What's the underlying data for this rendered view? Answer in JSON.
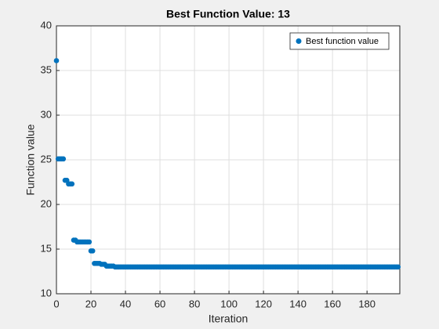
{
  "chart_data": {
    "type": "scatter",
    "title": "Best Function Value: 13",
    "xlabel": "Iteration",
    "ylabel": "Function value",
    "xlim": [
      0,
      199
    ],
    "ylim": [
      10,
      40
    ],
    "xticks": [
      0,
      20,
      40,
      60,
      80,
      100,
      120,
      140,
      160,
      180
    ],
    "yticks": [
      10,
      15,
      20,
      25,
      30,
      35,
      40
    ],
    "grid": true,
    "legend_position": "northeast",
    "series": [
      {
        "name": "Best function value",
        "color": "#0072bd",
        "x": [
          0,
          1,
          2,
          3,
          4,
          5,
          6,
          7,
          8,
          9,
          10,
          11,
          12,
          13,
          14,
          15,
          16,
          17,
          18,
          19,
          20,
          21,
          22,
          23,
          24,
          25,
          26,
          27,
          28,
          29,
          30,
          31,
          32,
          33,
          34,
          35,
          36,
          37,
          38,
          39,
          40,
          41,
          42,
          43,
          44,
          45,
          46,
          47,
          48,
          49,
          50,
          51,
          52,
          53,
          54,
          55,
          56,
          57,
          58,
          59,
          60,
          61,
          62,
          63,
          64,
          65,
          66,
          67,
          68,
          69,
          70,
          71,
          72,
          73,
          74,
          75,
          76,
          77,
          78,
          79,
          80,
          81,
          82,
          83,
          84,
          85,
          86,
          87,
          88,
          89,
          90,
          91,
          92,
          93,
          94,
          95,
          96,
          97,
          98,
          99,
          100,
          101,
          102,
          103,
          104,
          105,
          106,
          107,
          108,
          109,
          110,
          111,
          112,
          113,
          114,
          115,
          116,
          117,
          118,
          119,
          120,
          121,
          122,
          123,
          124,
          125,
          126,
          127,
          128,
          129,
          130,
          131,
          132,
          133,
          134,
          135,
          136,
          137,
          138,
          139,
          140,
          141,
          142,
          143,
          144,
          145,
          146,
          147,
          148,
          149,
          150,
          151,
          152,
          153,
          154,
          155,
          156,
          157,
          158,
          159,
          160,
          161,
          162,
          163,
          164,
          165,
          166,
          167,
          168,
          169,
          170,
          171,
          172,
          173,
          174,
          175,
          176,
          177,
          178,
          179,
          180,
          181,
          182,
          183,
          184,
          185,
          186,
          187,
          188,
          189,
          190,
          191,
          192,
          193,
          194,
          195,
          196,
          197,
          198
        ],
        "values": [
          36.1,
          25.1,
          25.1,
          25.1,
          25.1,
          22.7,
          22.7,
          22.3,
          22.3,
          22.3,
          16,
          16,
          15.8,
          15.8,
          15.8,
          15.8,
          15.8,
          15.8,
          15.8,
          15.8,
          14.8,
          14.8,
          13.4,
          13.4,
          13.4,
          13.4,
          13.3,
          13.3,
          13.3,
          13.1,
          13.1,
          13.1,
          13.1,
          13.1,
          13,
          13,
          13,
          13,
          13,
          13,
          13,
          13,
          13,
          13,
          13,
          13,
          13,
          13,
          13,
          13,
          13,
          13,
          13,
          13,
          13,
          13,
          13,
          13,
          13,
          13,
          13,
          13,
          13,
          13,
          13,
          13,
          13,
          13,
          13,
          13,
          13,
          13,
          13,
          13,
          13,
          13,
          13,
          13,
          13,
          13,
          13,
          13,
          13,
          13,
          13,
          13,
          13,
          13,
          13,
          13,
          13,
          13,
          13,
          13,
          13,
          13,
          13,
          13,
          13,
          13,
          13,
          13,
          13,
          13,
          13,
          13,
          13,
          13,
          13,
          13,
          13,
          13,
          13,
          13,
          13,
          13,
          13,
          13,
          13,
          13,
          13,
          13,
          13,
          13,
          13,
          13,
          13,
          13,
          13,
          13,
          13,
          13,
          13,
          13,
          13,
          13,
          13,
          13,
          13,
          13,
          13,
          13,
          13,
          13,
          13,
          13,
          13,
          13,
          13,
          13,
          13,
          13,
          13,
          13,
          13,
          13,
          13,
          13,
          13,
          13,
          13,
          13,
          13,
          13,
          13,
          13,
          13,
          13,
          13,
          13,
          13,
          13,
          13,
          13,
          13,
          13,
          13,
          13,
          13,
          13,
          13,
          13,
          13,
          13,
          13,
          13,
          13,
          13,
          13,
          13,
          13,
          13,
          13,
          13,
          13,
          13,
          13,
          13,
          13
        ]
      }
    ]
  }
}
